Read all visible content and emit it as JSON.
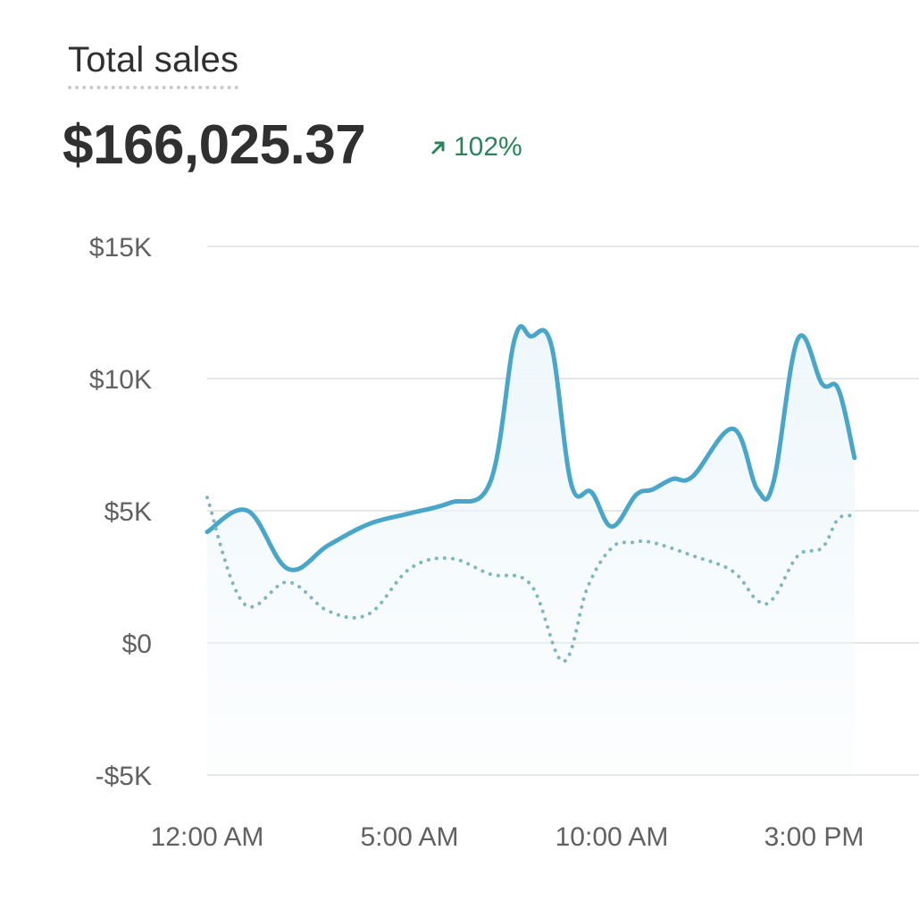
{
  "header": {
    "title": "Total sales",
    "total": "$166,025.37",
    "change": "102%",
    "change_icon": "arrow-up-right-icon"
  },
  "colors": {
    "primary_line": "#4aa6c8",
    "comparison_line": "#7fb6bf",
    "area_fill": "#eef7fb",
    "grid": "#e6e6e6",
    "positive": "#29845a"
  },
  "chart_data": {
    "type": "line",
    "title": "Total sales",
    "ylim": [
      -5000,
      15000
    ],
    "y_ticks": [
      15000,
      10000,
      5000,
      0,
      -5000
    ],
    "y_tick_labels": [
      "$15K",
      "$10K",
      "$5K",
      "$0",
      "-$5K"
    ],
    "x_ticks": [
      0,
      5,
      10,
      15
    ],
    "x_tick_labels": [
      "12:00 AM",
      "5:00 AM",
      "10:00 AM",
      "3:00 PM"
    ],
    "grid": true,
    "legend": "none",
    "series": [
      {
        "style": "solid",
        "x": [
          0,
          1,
          2,
          3,
          4,
          5,
          6,
          7,
          7.6,
          8,
          8.5,
          9,
          9.5,
          10,
          10.6,
          11,
          11.5,
          12,
          13,
          13.6,
          14,
          14.6,
          15.2,
          15.6,
          16
        ],
        "values": [
          4200,
          5000,
          2800,
          3700,
          4500,
          4900,
          5300,
          6100,
          11500,
          11600,
          11300,
          6000,
          5700,
          4400,
          5600,
          5800,
          6200,
          6300,
          8100,
          5800,
          6100,
          11500,
          9800,
          9600,
          7000
        ]
      },
      {
        "style": "dotted",
        "x": [
          0,
          0.9,
          2,
          3,
          4,
          5,
          6,
          7,
          8,
          8.8,
          9.4,
          10,
          10.5,
          11,
          12,
          13,
          13.6,
          14,
          14.6,
          15.2,
          15.6,
          16
        ],
        "values": [
          5500,
          1500,
          2300,
          1200,
          1100,
          2800,
          3200,
          2600,
          2200,
          -700,
          2100,
          3600,
          3800,
          3800,
          3300,
          2700,
          1600,
          1700,
          3300,
          3600,
          4700,
          4800
        ]
      }
    ]
  }
}
